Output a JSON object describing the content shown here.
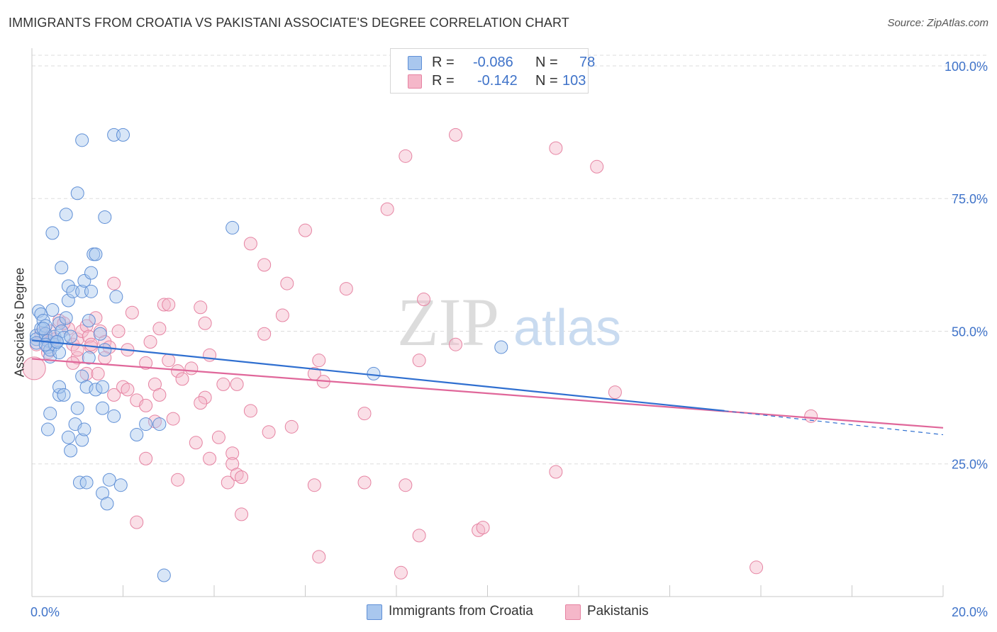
{
  "title": "IMMIGRANTS FROM CROATIA VS PAKISTANI ASSOCIATE'S DEGREE CORRELATION CHART",
  "source": "Source: ZipAtlas.com",
  "watermark": {
    "zip": "ZIP",
    "atlas": "atlas"
  },
  "legend": {
    "rows": [
      {
        "r_label": "R =",
        "r_value": "-0.086",
        "n_label": "N =",
        "n_value": "78"
      },
      {
        "r_label": "R =",
        "r_value": "-0.142",
        "n_label": "N =",
        "n_value": "103"
      }
    ]
  },
  "bottom_legend": [
    "Immigrants from Croatia",
    "Pakistanis"
  ],
  "colors": {
    "blue_fill": "#a9c7ee",
    "blue_stroke": "#5f8fd6",
    "blue_line": "#2f6fd0",
    "pink_fill": "#f5b7c9",
    "pink_stroke": "#e683a2",
    "pink_line": "#e0679a",
    "axis_text": "#3f73c9",
    "grid": "#dddddd"
  },
  "chart_data": {
    "type": "scatter",
    "title": "IMMIGRANTS FROM CROATIA VS PAKISTANI ASSOCIATE'S DEGREE CORRELATION CHART",
    "xlabel": "",
    "ylabel": "Associate's Degree",
    "xlim": [
      0,
      20
    ],
    "ylim": [
      0,
      102
    ],
    "x_tick_labels": [
      "0.0%",
      "20.0%"
    ],
    "y_ticks": [
      25,
      50,
      75,
      100
    ],
    "y_tick_labels": [
      "25.0%",
      "50.0%",
      "75.0%",
      "100.0%"
    ],
    "series": [
      {
        "name": "Immigrants from Croatia",
        "color": "blue",
        "r": -0.086,
        "n": 78,
        "trend": {
          "x0": 0.0,
          "y0": 48.3,
          "x1": 15.2,
          "y1": 35.0,
          "dashed_to_x": 20.0,
          "dashed_to_y": 30.5
        },
        "points": [
          [
            0.1,
            49.2
          ],
          [
            0.1,
            48.5
          ],
          [
            0.1,
            47.8
          ],
          [
            0.15,
            53.8
          ],
          [
            0.2,
            53.2
          ],
          [
            0.2,
            50.5
          ],
          [
            0.25,
            52.0
          ],
          [
            0.3,
            51.0
          ],
          [
            0.3,
            49.5
          ],
          [
            0.35,
            48.2
          ],
          [
            0.35,
            47.0
          ],
          [
            0.4,
            45.2
          ],
          [
            0.4,
            46.5
          ],
          [
            0.45,
            54.0
          ],
          [
            0.5,
            49.0
          ],
          [
            0.5,
            47.5
          ],
          [
            0.55,
            48.0
          ],
          [
            0.6,
            46.0
          ],
          [
            0.6,
            51.5
          ],
          [
            0.65,
            50.0
          ],
          [
            0.7,
            48.8
          ],
          [
            0.75,
            52.5
          ],
          [
            0.8,
            55.8
          ],
          [
            0.8,
            58.5
          ],
          [
            0.85,
            49.0
          ],
          [
            0.9,
            57.5
          ],
          [
            0.45,
            68.5
          ],
          [
            0.65,
            62.0
          ],
          [
            0.75,
            72.0
          ],
          [
            1.0,
            76.0
          ],
          [
            1.1,
            57.5
          ],
          [
            1.15,
            59.5
          ],
          [
            1.3,
            61.0
          ],
          [
            1.35,
            64.5
          ],
          [
            1.4,
            64.5
          ],
          [
            1.3,
            57.5
          ],
          [
            1.5,
            49.5
          ],
          [
            1.6,
            46.5
          ],
          [
            1.25,
            52.0
          ],
          [
            1.25,
            45.0
          ],
          [
            1.85,
            56.5
          ],
          [
            1.6,
            71.5
          ],
          [
            1.1,
            86.0
          ],
          [
            1.8,
            87.0
          ],
          [
            2.0,
            87.0
          ],
          [
            0.35,
            31.5
          ],
          [
            0.6,
            38.0
          ],
          [
            0.6,
            39.5
          ],
          [
            0.7,
            38.0
          ],
          [
            0.8,
            30.0
          ],
          [
            0.85,
            27.5
          ],
          [
            0.95,
            32.5
          ],
          [
            1.0,
            35.5
          ],
          [
            1.1,
            29.5
          ],
          [
            1.15,
            31.5
          ],
          [
            1.1,
            41.5
          ],
          [
            1.2,
            39.5
          ],
          [
            1.4,
            39.0
          ],
          [
            1.55,
            39.5
          ],
          [
            1.55,
            35.5
          ],
          [
            1.8,
            34.0
          ],
          [
            2.3,
            30.5
          ],
          [
            2.5,
            32.5
          ],
          [
            2.8,
            32.5
          ],
          [
            1.05,
            21.5
          ],
          [
            1.2,
            21.5
          ],
          [
            1.55,
            19.5
          ],
          [
            1.65,
            17.5
          ],
          [
            1.7,
            22.0
          ],
          [
            1.95,
            21.0
          ],
          [
            2.9,
            4.0
          ],
          [
            4.4,
            69.5
          ],
          [
            7.5,
            42.0
          ],
          [
            10.3,
            47.0
          ],
          [
            0.4,
            34.5
          ],
          [
            0.25,
            50.5
          ],
          [
            0.3,
            47.5
          ],
          [
            0.55,
            48.0
          ]
        ]
      },
      {
        "name": "Pakistanis",
        "color": "pink",
        "r": -0.142,
        "n": 103,
        "trend": {
          "x0": 0.0,
          "y0": 44.8,
          "x1": 20.0,
          "y1": 31.8
        },
        "points": [
          [
            0.05,
            43.0
          ],
          [
            0.1,
            47.5
          ],
          [
            0.3,
            49.0
          ],
          [
            0.4,
            50.0
          ],
          [
            0.5,
            48.5
          ],
          [
            0.6,
            52.0
          ],
          [
            0.8,
            50.5
          ],
          [
            0.9,
            47.5
          ],
          [
            1.0,
            48.5
          ],
          [
            1.0,
            45.0
          ],
          [
            1.1,
            50.0
          ],
          [
            1.2,
            51.0
          ],
          [
            1.25,
            49.0
          ],
          [
            1.3,
            47.0
          ],
          [
            1.4,
            52.5
          ],
          [
            1.5,
            50.0
          ],
          [
            1.6,
            48.0
          ],
          [
            1.7,
            47.0
          ],
          [
            1.8,
            59.0
          ],
          [
            1.9,
            50.0
          ],
          [
            2.1,
            46.5
          ],
          [
            2.2,
            53.5
          ],
          [
            2.5,
            44.0
          ],
          [
            2.6,
            48.0
          ],
          [
            2.8,
            50.5
          ],
          [
            2.9,
            55.0
          ],
          [
            3.0,
            55.0
          ],
          [
            3.0,
            44.5
          ],
          [
            3.2,
            42.5
          ],
          [
            3.3,
            41.0
          ],
          [
            3.5,
            43.0
          ],
          [
            3.7,
            54.5
          ],
          [
            3.8,
            51.5
          ],
          [
            3.9,
            45.5
          ],
          [
            4.2,
            40.0
          ],
          [
            4.5,
            40.0
          ],
          [
            4.8,
            66.5
          ],
          [
            5.1,
            62.5
          ],
          [
            5.1,
            49.5
          ],
          [
            5.5,
            53.0
          ],
          [
            5.6,
            59.0
          ],
          [
            6.0,
            69.0
          ],
          [
            6.2,
            42.0
          ],
          [
            6.3,
            44.5
          ],
          [
            6.4,
            40.5
          ],
          [
            6.9,
            58.0
          ],
          [
            7.8,
            73.0
          ],
          [
            8.2,
            83.0
          ],
          [
            8.5,
            44.5
          ],
          [
            8.6,
            56.0
          ],
          [
            9.3,
            87.0
          ],
          [
            9.3,
            47.5
          ],
          [
            11.5,
            84.5
          ],
          [
            12.4,
            81.0
          ],
          [
            12.8,
            38.5
          ],
          [
            17.1,
            34.0
          ],
          [
            1.2,
            42.0
          ],
          [
            1.8,
            38.0
          ],
          [
            2.0,
            39.5
          ],
          [
            2.1,
            39.0
          ],
          [
            2.3,
            37.0
          ],
          [
            2.5,
            36.0
          ],
          [
            2.7,
            40.0
          ],
          [
            2.8,
            38.0
          ],
          [
            3.1,
            33.5
          ],
          [
            3.6,
            29.0
          ],
          [
            3.8,
            37.5
          ],
          [
            3.7,
            36.5
          ],
          [
            4.1,
            30.0
          ],
          [
            4.4,
            27.0
          ],
          [
            4.4,
            25.0
          ],
          [
            4.8,
            35.0
          ],
          [
            5.2,
            31.0
          ],
          [
            5.7,
            32.0
          ],
          [
            4.3,
            21.5
          ],
          [
            4.5,
            23.0
          ],
          [
            4.6,
            22.5
          ],
          [
            3.9,
            26.0
          ],
          [
            2.5,
            26.0
          ],
          [
            3.2,
            22.0
          ],
          [
            6.2,
            21.0
          ],
          [
            7.3,
            21.5
          ],
          [
            8.2,
            21.0
          ],
          [
            7.3,
            34.5
          ],
          [
            11.5,
            23.5
          ],
          [
            2.3,
            14.0
          ],
          [
            4.6,
            15.5
          ],
          [
            8.5,
            11.5
          ],
          [
            9.8,
            12.5
          ],
          [
            9.9,
            13.0
          ],
          [
            6.3,
            7.5
          ],
          [
            8.1,
            4.5
          ],
          [
            15.9,
            5.5
          ],
          [
            2.7,
            33.0
          ],
          [
            0.4,
            48.0
          ],
          [
            0.7,
            51.5
          ],
          [
            0.2,
            49.5
          ],
          [
            0.35,
            46.0
          ],
          [
            0.9,
            44.0
          ],
          [
            1.0,
            46.5
          ],
          [
            1.3,
            47.5
          ],
          [
            1.6,
            45.0
          ],
          [
            1.45,
            42.0
          ]
        ]
      }
    ]
  }
}
